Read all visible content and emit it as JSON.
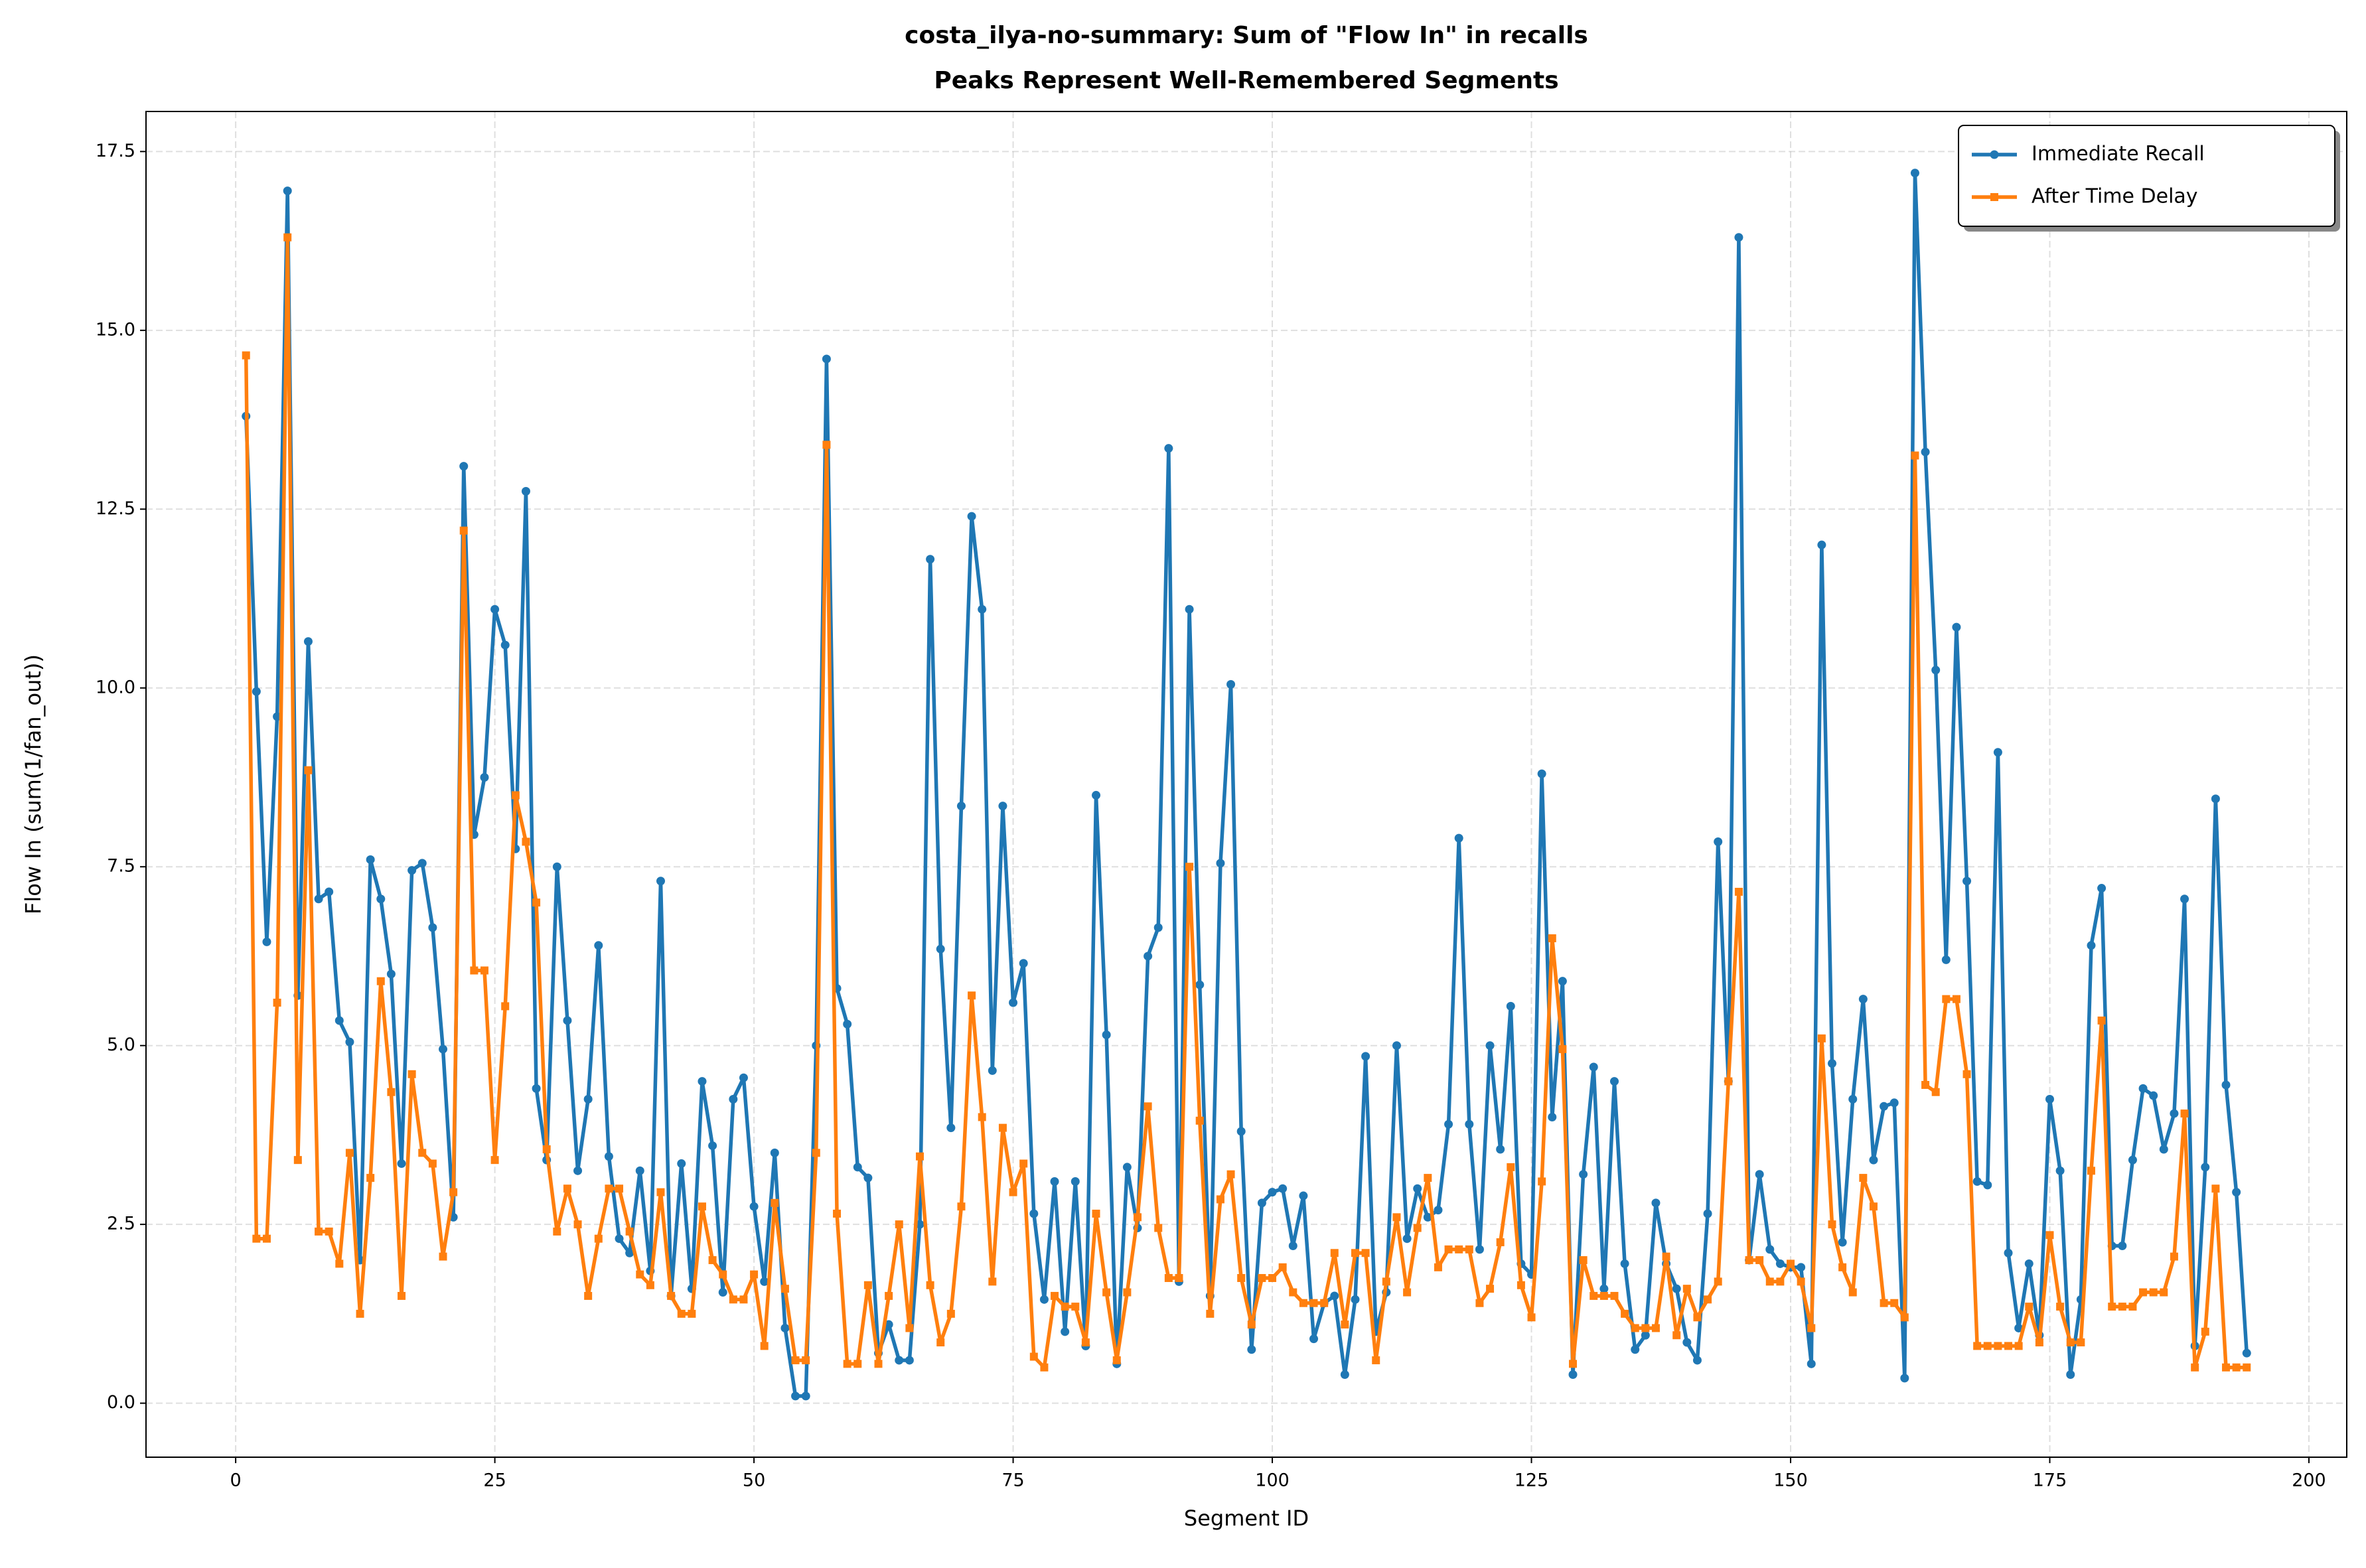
{
  "chart_data": {
    "type": "line",
    "title": [
      "costa_ilya-no-summary: Sum of \"Flow In\" in recalls",
      "Peaks Represent Well-Remembered Segments"
    ],
    "xlabel": "Segment ID",
    "ylabel": "Flow In (sum(1/fan_out))",
    "x": [
      1,
      2,
      3,
      4,
      5,
      6,
      7,
      8,
      9,
      10,
      11,
      12,
      13,
      14,
      15,
      16,
      17,
      18,
      19,
      20,
      21,
      22,
      23,
      24,
      25,
      26,
      27,
      28,
      29,
      30,
      31,
      32,
      33,
      34,
      35,
      36,
      37,
      38,
      39,
      40,
      41,
      42,
      43,
      44,
      45,
      46,
      47,
      48,
      49,
      50,
      51,
      52,
      53,
      54,
      55,
      56,
      57,
      58,
      59,
      60,
      61,
      62,
      63,
      64,
      65,
      66,
      67,
      68,
      69,
      70,
      71,
      72,
      73,
      74,
      75,
      76,
      77,
      78,
      79,
      80,
      81,
      82,
      83,
      84,
      85,
      86,
      87,
      88,
      89,
      90,
      91,
      92,
      93,
      94,
      95,
      96,
      97,
      98,
      99,
      100,
      101,
      102,
      103,
      104,
      105,
      106,
      107,
      108,
      109,
      110,
      111,
      112,
      113,
      114,
      115,
      116,
      117,
      118,
      119,
      120,
      121,
      122,
      123,
      124,
      125,
      126,
      127,
      128,
      129,
      130,
      131,
      132,
      133,
      134,
      135,
      136,
      137,
      138,
      139,
      140,
      141,
      142,
      143,
      144,
      145,
      146,
      147,
      148,
      149,
      150,
      151,
      152,
      153,
      154,
      155,
      156,
      157,
      158,
      159,
      160,
      161,
      162,
      163,
      164,
      165,
      166,
      167,
      168,
      169,
      170,
      171,
      172,
      173,
      174,
      175,
      176,
      177,
      178,
      179,
      180,
      181,
      182,
      183,
      184,
      185,
      186,
      187,
      188,
      189,
      190,
      191,
      192,
      193,
      194
    ],
    "series": [
      {
        "name": "Immediate Recall",
        "color": "#1f77b4",
        "marker": "circle",
        "values": [
          13.8,
          9.95,
          6.45,
          9.6,
          16.95,
          5.7,
          10.65,
          7.05,
          7.15,
          5.35,
          5.05,
          2.0,
          7.6,
          7.05,
          6.0,
          3.35,
          7.45,
          7.55,
          6.65,
          4.95,
          2.6,
          13.1,
          7.95,
          8.75,
          11.1,
          10.6,
          7.75,
          12.75,
          4.4,
          3.4,
          7.5,
          5.35,
          3.25,
          4.25,
          6.4,
          3.45,
          2.3,
          2.1,
          3.25,
          1.85,
          7.3,
          1.5,
          3.35,
          1.6,
          4.5,
          3.6,
          1.55,
          4.25,
          4.55,
          2.75,
          1.7,
          3.5,
          1.05,
          0.1,
          0.1,
          5.0,
          14.6,
          5.8,
          5.3,
          3.3,
          3.15,
          0.7,
          1.1,
          0.6,
          0.6,
          2.5,
          11.8,
          6.35,
          3.85,
          8.35,
          12.4,
          11.1,
          4.65,
          8.35,
          5.6,
          6.15,
          2.65,
          1.45,
          3.1,
          1.0,
          3.1,
          0.8,
          8.5,
          5.15,
          0.55,
          3.3,
          2.45,
          6.25,
          6.65,
          13.35,
          1.7,
          11.1,
          5.85,
          1.5,
          7.55,
          10.05,
          3.8,
          0.75,
          2.8,
          2.95,
          3.0,
          2.2,
          2.9,
          0.9,
          1.4,
          1.5,
          0.4,
          1.45,
          4.85,
          1.0,
          1.55,
          5.0,
          2.3,
          3.0,
          2.6,
          2.7,
          3.9,
          7.9,
          3.9,
          2.15,
          5.0,
          3.55,
          5.55,
          1.95,
          1.8,
          8.8,
          4.0,
          5.9,
          0.4,
          3.2,
          4.7,
          1.6,
          4.5,
          1.95,
          0.75,
          0.95,
          2.8,
          1.95,
          1.6,
          0.85,
          0.6,
          2.65,
          7.85,
          4.5,
          16.3,
          2.0,
          3.2,
          2.15,
          1.95,
          1.9,
          1.9,
          0.55,
          12.0,
          4.75,
          2.25,
          4.25,
          5.65,
          3.4,
          4.15,
          4.2,
          0.35,
          17.2,
          13.3,
          10.25,
          6.2,
          10.85,
          7.3,
          3.1,
          3.05,
          9.1,
          2.1,
          1.05,
          1.95,
          0.95,
          4.25,
          3.25,
          0.4,
          1.45,
          6.4,
          7.2,
          2.2,
          2.2,
          3.4,
          4.4,
          4.3,
          3.55,
          4.05,
          7.05,
          0.8,
          3.3,
          8.45,
          4.45,
          2.95,
          0.7
        ]
      },
      {
        "name": "After Time Delay",
        "color": "#ff7f0e",
        "marker": "square",
        "values": [
          14.65,
          2.3,
          2.3,
          5.6,
          16.3,
          3.4,
          8.85,
          2.4,
          2.4,
          1.95,
          3.5,
          1.25,
          3.15,
          5.9,
          4.35,
          1.5,
          4.6,
          3.5,
          3.35,
          2.05,
          2.95,
          12.2,
          6.05,
          6.05,
          3.4,
          5.55,
          8.5,
          7.85,
          7.0,
          3.55,
          2.4,
          3.0,
          2.5,
          1.5,
          2.3,
          3.0,
          3.0,
          2.4,
          1.8,
          1.65,
          2.95,
          1.5,
          1.25,
          1.25,
          2.75,
          2.0,
          1.8,
          1.45,
          1.45,
          1.8,
          0.8,
          2.8,
          1.6,
          0.6,
          0.6,
          3.5,
          13.4,
          2.65,
          0.55,
          0.55,
          1.65,
          0.55,
          1.5,
          2.5,
          1.05,
          3.45,
          1.65,
          0.85,
          1.25,
          2.75,
          5.7,
          4.0,
          1.7,
          3.85,
          2.95,
          3.35,
          0.65,
          0.5,
          1.5,
          1.35,
          1.35,
          0.85,
          2.65,
          1.55,
          0.6,
          1.55,
          2.6,
          4.15,
          2.45,
          1.75,
          1.75,
          7.5,
          3.95,
          1.25,
          2.85,
          3.2,
          1.75,
          1.1,
          1.75,
          1.75,
          1.9,
          1.55,
          1.4,
          1.4,
          1.4,
          2.1,
          1.1,
          2.1,
          2.1,
          0.6,
          1.7,
          2.6,
          1.55,
          2.45,
          3.15,
          1.9,
          2.15,
          2.15,
          2.15,
          1.4,
          1.6,
          2.25,
          3.3,
          1.65,
          1.2,
          3.1,
          6.5,
          4.95,
          0.55,
          2.0,
          1.5,
          1.5,
          1.5,
          1.25,
          1.05,
          1.05,
          1.05,
          2.05,
          0.95,
          1.6,
          1.2,
          1.45,
          1.7,
          4.5,
          7.15,
          2.0,
          2.0,
          1.7,
          1.7,
          1.95,
          1.7,
          1.05,
          5.1,
          2.5,
          1.9,
          1.55,
          3.15,
          2.75,
          1.4,
          1.4,
          1.2,
          13.25,
          4.45,
          4.35,
          5.65,
          5.65,
          4.6,
          0.8,
          0.8,
          0.8,
          0.8,
          0.8,
          1.35,
          0.85,
          2.35,
          1.35,
          0.85,
          0.85,
          3.25,
          5.35,
          1.35,
          1.35,
          1.35,
          1.55,
          1.55,
          1.55,
          2.05,
          4.05,
          0.5,
          1.0,
          3.0,
          0.5,
          0.5,
          0.5
        ]
      }
    ],
    "xlim": [
      -8.65,
      203.65
    ],
    "ylim": [
      -0.755,
      18.06
    ],
    "xticks": [
      0,
      25,
      50,
      75,
      100,
      125,
      150,
      175,
      200
    ],
    "yticks": [
      {
        "value": 0,
        "label": "0.0"
      },
      2.5,
      {
        "value": 5,
        "label": "5.0"
      },
      7.5,
      {
        "value": 10,
        "label": "10.0"
      },
      12.5,
      {
        "value": 15,
        "label": "15.0"
      },
      17.5
    ],
    "grid": true,
    "legend": "upper right"
  }
}
